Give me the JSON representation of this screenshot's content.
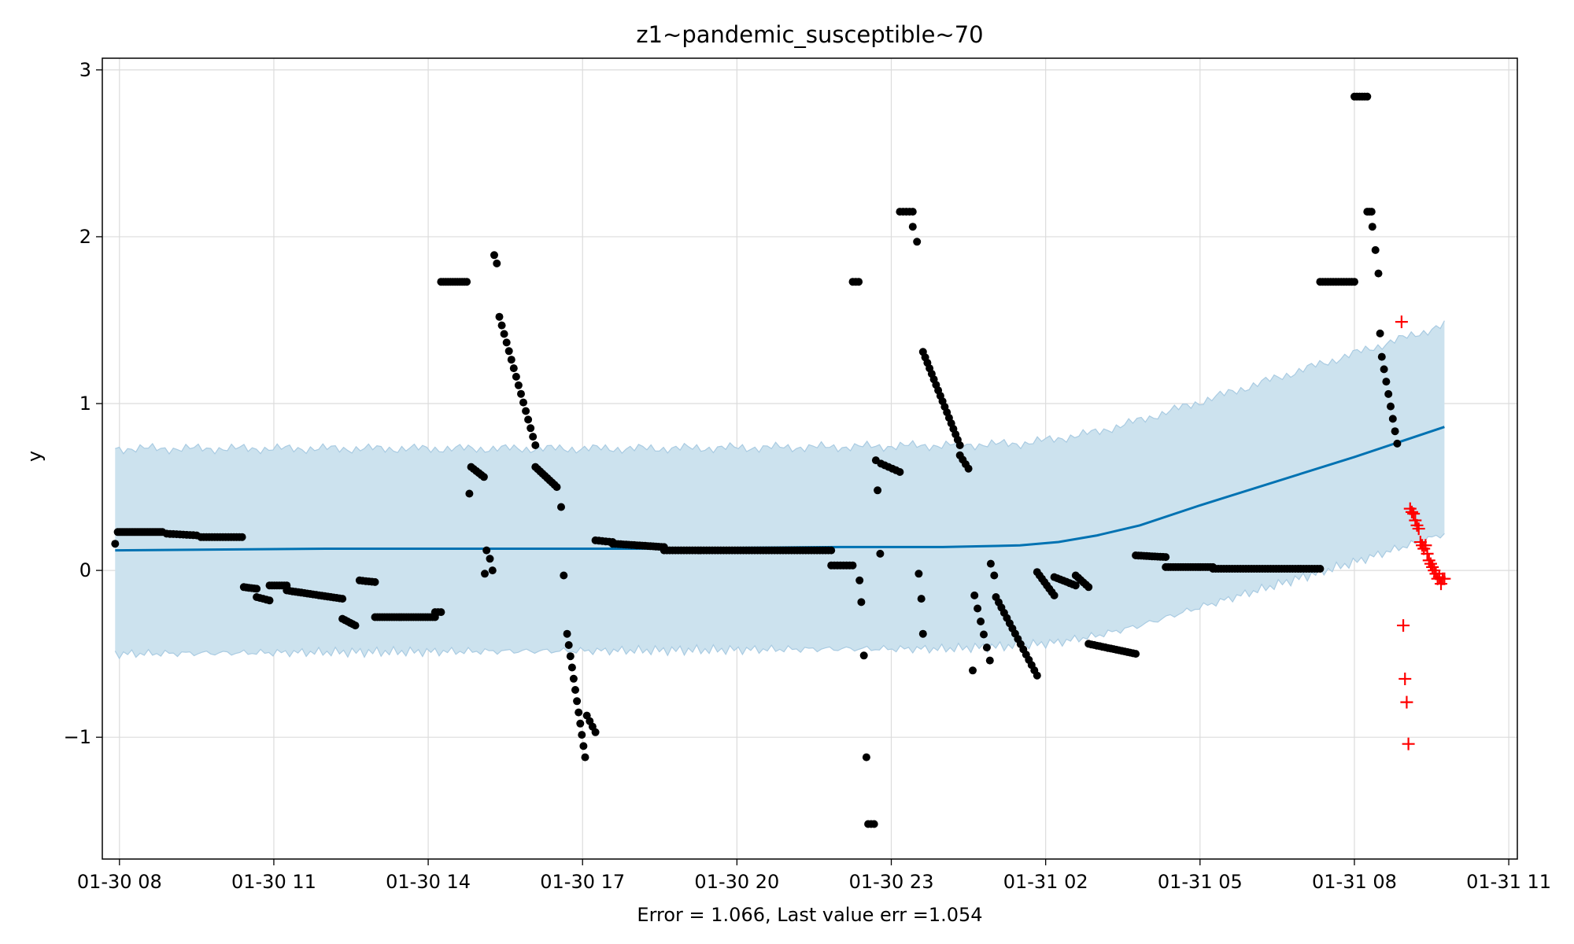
{
  "chart_data": {
    "type": "scatter",
    "title": "z1~pandemic_susceptible~70",
    "xlabel": "Error = 1.066, Last value err =1.054",
    "ylabel": "y",
    "x_unit": "datetime (2020-01-30 .. 2020-01-31)",
    "xlim": [
      "2020-01-30 07:40",
      "2020-01-31 11:10"
    ],
    "ylim": [
      -1.73,
      3.07
    ],
    "x_ticks": [
      {
        "t": "2020-01-30 08:00",
        "label": "01-30 08"
      },
      {
        "t": "2020-01-30 11:00",
        "label": "01-30 11"
      },
      {
        "t": "2020-01-30 14:00",
        "label": "01-30 14"
      },
      {
        "t": "2020-01-30 17:00",
        "label": "01-30 17"
      },
      {
        "t": "2020-01-30 20:00",
        "label": "01-30 20"
      },
      {
        "t": "2020-01-30 23:00",
        "label": "01-30 23"
      },
      {
        "t": "2020-01-31 02:00",
        "label": "01-31 02"
      },
      {
        "t": "2020-01-31 05:00",
        "label": "01-31 05"
      },
      {
        "t": "2020-01-31 08:00",
        "label": "01-31 08"
      },
      {
        "t": "2020-01-31 11:00",
        "label": "01-31 11"
      }
    ],
    "y_ticks": [
      {
        "v": -1,
        "label": "−1"
      },
      {
        "v": 0,
        "label": "0"
      },
      {
        "v": 1,
        "label": "1"
      },
      {
        "v": 2,
        "label": "2"
      },
      {
        "v": 3,
        "label": "3"
      }
    ],
    "grid": true,
    "colors": {
      "observed": "#000000",
      "forecast": "#0072b2",
      "interval_fill": "#cce2ee",
      "interval_edge": "#a9cbe2",
      "holdout": "#ff0000",
      "grid": "#dcdcdc"
    },
    "forecast_line": {
      "x": [
        "2020-01-30 07:55",
        "2020-01-30 12:00",
        "2020-01-30 18:00",
        "2020-01-30 22:00",
        "2020-01-31 00:00",
        "2020-01-31 01:30",
        "2020-01-31 02:15",
        "2020-01-31 03:00",
        "2020-01-31 03:50",
        "2020-01-31 05:00",
        "2020-01-31 08:00",
        "2020-01-31 09:45"
      ],
      "y": [
        0.12,
        0.13,
        0.13,
        0.14,
        0.14,
        0.15,
        0.17,
        0.21,
        0.27,
        0.39,
        0.68,
        0.86
      ]
    },
    "interval_upper": {
      "x": [
        "2020-01-30 07:55",
        "2020-01-30 12:00",
        "2020-01-30 18:00",
        "2020-01-30 22:00",
        "2020-01-31 00:00",
        "2020-01-31 01:30",
        "2020-01-31 02:15",
        "2020-01-31 03:00",
        "2020-01-31 03:50",
        "2020-01-31 05:00",
        "2020-01-31 08:00",
        "2020-01-31 09:45"
      ],
      "y": [
        0.73,
        0.73,
        0.73,
        0.74,
        0.75,
        0.76,
        0.79,
        0.83,
        0.9,
        1.01,
        1.3,
        1.47
      ]
    },
    "interval_lower": {
      "x": [
        "2020-01-30 07:55",
        "2020-01-30 12:00",
        "2020-01-30 18:00",
        "2020-01-30 22:00",
        "2020-01-31 00:00",
        "2020-01-31 01:30",
        "2020-01-31 02:15",
        "2020-01-31 03:00",
        "2020-01-31 03:50",
        "2020-01-31 05:00",
        "2020-01-31 08:00",
        "2020-01-31 09:45"
      ],
      "y": [
        -0.5,
        -0.49,
        -0.48,
        -0.47,
        -0.47,
        -0.45,
        -0.43,
        -0.39,
        -0.33,
        -0.22,
        0.05,
        0.22
      ]
    },
    "observed_segments": [
      {
        "t0": "2020-01-30 07:55",
        "t1": "2020-01-30 07:55",
        "y0": 0.16,
        "y1": 0.16,
        "n": 1
      },
      {
        "t0": "2020-01-30 07:58",
        "t1": "2020-01-30 08:50",
        "y0": 0.23,
        "y1": 0.23,
        "n": 28
      },
      {
        "t0": "2020-01-30 08:55",
        "t1": "2020-01-30 09:30",
        "y0": 0.22,
        "y1": 0.21,
        "n": 10
      },
      {
        "t0": "2020-01-30 09:35",
        "t1": "2020-01-30 10:23",
        "y0": 0.2,
        "y1": 0.2,
        "n": 16
      },
      {
        "t0": "2020-01-30 10:25",
        "t1": "2020-01-30 10:40",
        "y0": -0.1,
        "y1": -0.11,
        "n": 6
      },
      {
        "t0": "2020-01-30 10:40",
        "t1": "2020-01-30 10:55",
        "y0": -0.16,
        "y1": -0.18,
        "n": 5
      },
      {
        "t0": "2020-01-30 10:55",
        "t1": "2020-01-30 11:15",
        "y0": -0.09,
        "y1": -0.09,
        "n": 8
      },
      {
        "t0": "2020-01-30 11:15",
        "t1": "2020-01-30 12:20",
        "y0": -0.12,
        "y1": -0.17,
        "n": 20
      },
      {
        "t0": "2020-01-30 12:20",
        "t1": "2020-01-30 12:35",
        "y0": -0.29,
        "y1": -0.33,
        "n": 6
      },
      {
        "t0": "2020-01-30 12:40",
        "t1": "2020-01-30 12:58",
        "y0": -0.06,
        "y1": -0.07,
        "n": 6
      },
      {
        "t0": "2020-01-30 12:58",
        "t1": "2020-01-30 14:08",
        "y0": -0.28,
        "y1": -0.28,
        "n": 26
      },
      {
        "t0": "2020-01-30 14:08",
        "t1": "2020-01-30 14:15",
        "y0": -0.25,
        "y1": -0.25,
        "n": 3
      },
      {
        "t0": "2020-01-30 14:15",
        "t1": "2020-01-30 14:45",
        "y0": 1.73,
        "y1": 1.73,
        "n": 12
      },
      {
        "t0": "2020-01-30 14:48",
        "t1": "2020-01-30 14:48",
        "y0": 0.46,
        "y1": 0.46,
        "n": 1
      },
      {
        "t0": "2020-01-30 14:50",
        "t1": "2020-01-30 15:05",
        "y0": 0.62,
        "y1": 0.56,
        "n": 6
      },
      {
        "t0": "2020-01-30 15:06",
        "t1": "2020-01-30 15:06",
        "y0": -0.02,
        "y1": -0.02,
        "n": 1
      },
      {
        "t0": "2020-01-30 15:08",
        "t1": "2020-01-30 15:12",
        "y0": 0.12,
        "y1": 0.07,
        "n": 2
      },
      {
        "t0": "2020-01-30 15:15",
        "t1": "2020-01-30 15:15",
        "y0": 0.0,
        "y1": 0.0,
        "n": 1
      },
      {
        "t0": "2020-01-30 15:17",
        "t1": "2020-01-30 15:20",
        "y0": 1.89,
        "y1": 1.84,
        "n": 2
      },
      {
        "t0": "2020-01-30 15:23",
        "t1": "2020-01-30 16:05",
        "y0": 1.52,
        "y1": 0.75,
        "n": 16
      },
      {
        "t0": "2020-01-30 16:05",
        "t1": "2020-01-30 16:30",
        "y0": 0.62,
        "y1": 0.5,
        "n": 10
      },
      {
        "t0": "2020-01-30 16:35",
        "t1": "2020-01-30 16:35",
        "y0": 0.38,
        "y1": 0.38,
        "n": 1
      },
      {
        "t0": "2020-01-30 16:38",
        "t1": "2020-01-30 16:40",
        "y0": -0.03,
        "y1": -0.03,
        "n": 1
      },
      {
        "t0": "2020-01-30 16:42",
        "t1": "2020-01-30 17:03",
        "y0": -0.38,
        "y1": -1.12,
        "n": 12
      },
      {
        "t0": "2020-01-30 17:05",
        "t1": "2020-01-30 17:15",
        "y0": -0.87,
        "y1": -0.97,
        "n": 4
      },
      {
        "t0": "2020-01-30 17:15",
        "t1": "2020-01-30 17:35",
        "y0": 0.18,
        "y1": 0.17,
        "n": 6
      },
      {
        "t0": "2020-01-30 17:35",
        "t1": "2020-01-30 18:35",
        "y0": 0.16,
        "y1": 0.14,
        "n": 20
      },
      {
        "t0": "2020-01-30 18:35",
        "t1": "2020-01-30 21:50",
        "y0": 0.12,
        "y1": 0.12,
        "n": 60
      },
      {
        "t0": "2020-01-30 21:50",
        "t1": "2020-01-30 22:15",
        "y0": 0.03,
        "y1": 0.03,
        "n": 8
      },
      {
        "t0": "2020-01-30 22:15",
        "t1": "2020-01-30 22:22",
        "y0": 1.73,
        "y1": 1.73,
        "n": 3
      },
      {
        "t0": "2020-01-30 22:23",
        "t1": "2020-01-30 22:25",
        "y0": -0.06,
        "y1": -0.06,
        "n": 1
      },
      {
        "t0": "2020-01-30 22:25",
        "t1": "2020-01-30 22:27",
        "y0": -0.19,
        "y1": -0.19,
        "n": 1
      },
      {
        "t0": "2020-01-30 22:28",
        "t1": "2020-01-30 22:30",
        "y0": -0.51,
        "y1": -0.51,
        "n": 1
      },
      {
        "t0": "2020-01-30 22:31",
        "t1": "2020-01-30 22:32",
        "y0": -1.12,
        "y1": -1.12,
        "n": 1
      },
      {
        "t0": "2020-01-30 22:33",
        "t1": "2020-01-30 22:40",
        "y0": -1.52,
        "y1": -1.52,
        "n": 3
      },
      {
        "t0": "2020-01-30 22:42",
        "t1": "2020-01-30 22:42",
        "y0": 0.66,
        "y1": 0.66,
        "n": 1
      },
      {
        "t0": "2020-01-30 22:44",
        "t1": "2020-01-30 22:44",
        "y0": 0.48,
        "y1": 0.48,
        "n": 1
      },
      {
        "t0": "2020-01-30 22:47",
        "t1": "2020-01-30 22:47",
        "y0": 0.1,
        "y1": 0.1,
        "n": 1
      },
      {
        "t0": "2020-01-30 22:48",
        "t1": "2020-01-30 23:10",
        "y0": 0.64,
        "y1": 0.59,
        "n": 6
      },
      {
        "t0": "2020-01-30 23:10",
        "t1": "2020-01-30 23:25",
        "y0": 2.15,
        "y1": 2.15,
        "n": 5
      },
      {
        "t0": "2020-01-30 23:25",
        "t1": "2020-01-30 23:30",
        "y0": 2.06,
        "y1": 1.97,
        "n": 2
      },
      {
        "t0": "2020-01-30 23:32",
        "t1": "2020-01-30 23:35",
        "y0": -0.02,
        "y1": -0.17,
        "n": 2
      },
      {
        "t0": "2020-01-30 23:37",
        "t1": "2020-01-30 23:37",
        "y0": -0.38,
        "y1": -0.38,
        "n": 1
      },
      {
        "t0": "2020-01-30 23:37",
        "t1": "2020-01-31 00:20",
        "y0": 1.31,
        "y1": 0.75,
        "n": 18
      },
      {
        "t0": "2020-01-31 00:20",
        "t1": "2020-01-31 00:30",
        "y0": 0.69,
        "y1": 0.61,
        "n": 4
      },
      {
        "t0": "2020-01-31 00:35",
        "t1": "2020-01-31 00:35",
        "y0": -0.6,
        "y1": -0.6,
        "n": 1
      },
      {
        "t0": "2020-01-31 00:37",
        "t1": "2020-01-31 00:55",
        "y0": -0.15,
        "y1": -0.54,
        "n": 6
      },
      {
        "t0": "2020-01-31 00:56",
        "t1": "2020-01-31 01:00",
        "y0": 0.04,
        "y1": -0.03,
        "n": 2
      },
      {
        "t0": "2020-01-31 01:02",
        "t1": "2020-01-31 01:50",
        "y0": -0.16,
        "y1": -0.63,
        "n": 16
      },
      {
        "t0": "2020-01-31 01:50",
        "t1": "2020-01-31 02:10",
        "y0": -0.01,
        "y1": -0.15,
        "n": 8
      },
      {
        "t0": "2020-01-31 02:10",
        "t1": "2020-01-31 02:35",
        "y0": -0.04,
        "y1": -0.09,
        "n": 8
      },
      {
        "t0": "2020-01-31 02:35",
        "t1": "2020-01-31 02:50",
        "y0": -0.03,
        "y1": -0.1,
        "n": 6
      },
      {
        "t0": "2020-01-31 02:50",
        "t1": "2020-01-31 03:45",
        "y0": -0.44,
        "y1": -0.5,
        "n": 18
      },
      {
        "t0": "2020-01-31 03:45",
        "t1": "2020-01-31 04:20",
        "y0": 0.09,
        "y1": 0.08,
        "n": 12
      },
      {
        "t0": "2020-01-31 04:20",
        "t1": "2020-01-31 05:15",
        "y0": 0.02,
        "y1": 0.02,
        "n": 20
      },
      {
        "t0": "2020-01-31 05:15",
        "t1": "2020-01-31 07:20",
        "y0": 0.01,
        "y1": 0.01,
        "n": 40
      },
      {
        "t0": "2020-01-31 07:20",
        "t1": "2020-01-31 08:00",
        "y0": 1.73,
        "y1": 1.73,
        "n": 14
      },
      {
        "t0": "2020-01-31 08:00",
        "t1": "2020-01-31 08:15",
        "y0": 2.84,
        "y1": 2.84,
        "n": 6
      },
      {
        "t0": "2020-01-31 08:15",
        "t1": "2020-01-31 08:20",
        "y0": 2.15,
        "y1": 2.15,
        "n": 3
      },
      {
        "t0": "2020-01-31 08:21",
        "t1": "2020-01-31 08:28",
        "y0": 2.06,
        "y1": 1.78,
        "n": 3
      },
      {
        "t0": "2020-01-31 08:30",
        "t1": "2020-01-31 08:30",
        "y0": 1.42,
        "y1": 1.42,
        "n": 1
      },
      {
        "t0": "2020-01-31 08:32",
        "t1": "2020-01-31 08:50",
        "y0": 1.28,
        "y1": 0.76,
        "n": 8
      }
    ],
    "holdout_points": [
      {
        "t": "2020-01-31 08:55",
        "y": 1.49
      },
      {
        "t": "2020-01-31 08:57",
        "y": -0.33
      },
      {
        "t": "2020-01-31 08:59",
        "y": -0.65
      },
      {
        "t": "2020-01-31 09:01",
        "y": -0.79
      },
      {
        "t": "2020-01-31 09:03",
        "y": -1.04
      },
      {
        "t": "2020-01-31 09:05",
        "y": 0.37
      },
      {
        "t": "2020-01-31 09:07",
        "y": 0.35
      },
      {
        "t": "2020-01-31 09:09",
        "y": 0.34
      },
      {
        "t": "2020-01-31 09:11",
        "y": 0.3
      },
      {
        "t": "2020-01-31 09:13",
        "y": 0.27
      },
      {
        "t": "2020-01-31 09:15",
        "y": 0.25
      },
      {
        "t": "2020-01-31 09:17",
        "y": 0.17
      },
      {
        "t": "2020-01-31 09:19",
        "y": 0.15
      },
      {
        "t": "2020-01-31 09:21",
        "y": 0.13
      },
      {
        "t": "2020-01-31 09:23",
        "y": 0.15
      },
      {
        "t": "2020-01-31 09:25",
        "y": 0.1
      },
      {
        "t": "2020-01-31 09:27",
        "y": 0.06
      },
      {
        "t": "2020-01-31 09:29",
        "y": 0.04
      },
      {
        "t": "2020-01-31 09:31",
        "y": 0.02
      },
      {
        "t": "2020-01-31 09:33",
        "y": 0.0
      },
      {
        "t": "2020-01-31 09:35",
        "y": -0.02
      },
      {
        "t": "2020-01-31 09:37",
        "y": -0.05
      },
      {
        "t": "2020-01-31 09:39",
        "y": -0.04
      },
      {
        "t": "2020-01-31 09:41",
        "y": -0.08
      },
      {
        "t": "2020-01-31 09:43",
        "y": -0.05
      },
      {
        "t": "2020-01-31 09:45",
        "y": -0.05
      }
    ]
  }
}
